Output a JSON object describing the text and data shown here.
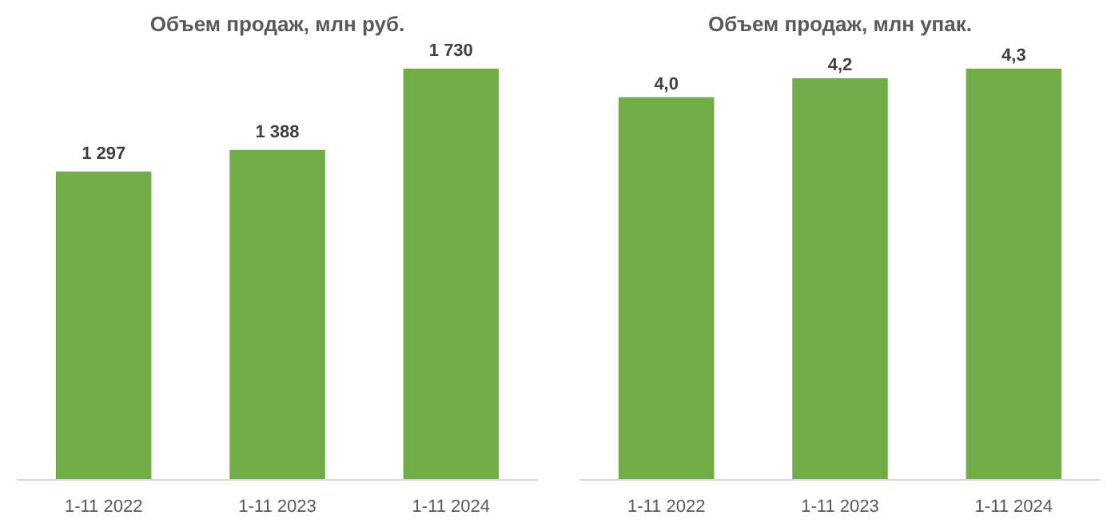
{
  "chart_data": [
    {
      "type": "bar",
      "title": "Объем продаж, млн руб.",
      "categories": [
        "1-11 2022",
        "1-11 2023",
        "1-11 2024"
      ],
      "values": [
        1297,
        1388,
        1730
      ],
      "value_labels": [
        "1 297",
        "1 388",
        "1 730"
      ],
      "color": "#70ad47",
      "grid": false,
      "tick_labels": "x"
    },
    {
      "type": "bar",
      "title": "Объем продаж, млн упак.",
      "categories": [
        "1-11 2022",
        "1-11 2023",
        "1-11 2024"
      ],
      "values": [
        4.0,
        4.2,
        4.3
      ],
      "value_labels": [
        "4,0",
        "4,2",
        "4,3"
      ],
      "color": "#70ad47",
      "grid": false,
      "tick_labels": "x"
    }
  ]
}
